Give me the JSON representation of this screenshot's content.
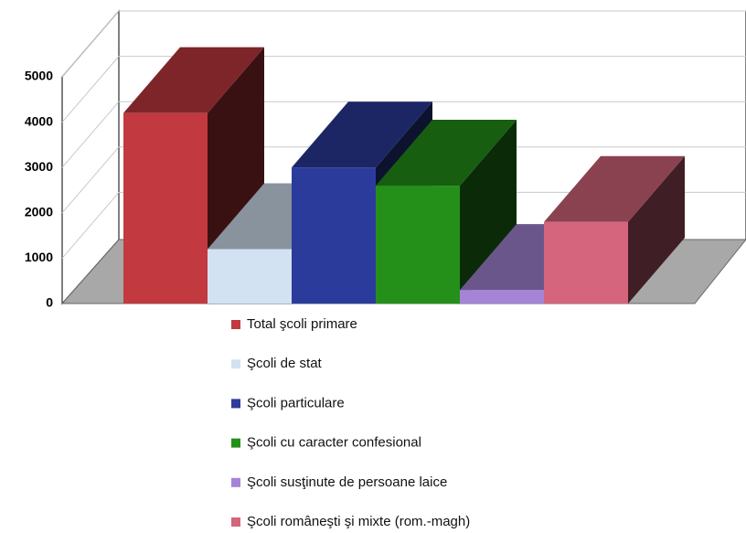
{
  "chart_data": {
    "type": "bar3d",
    "series": [
      {
        "name": "Total şcoli primare",
        "color": "#c2393f",
        "values": [
          4200
        ]
      },
      {
        "name": "Şcoli de stat",
        "color": "#d3e2f2",
        "values": [
          1200
        ]
      },
      {
        "name": "Şcoli particulare",
        "color": "#2b3b9c",
        "values": [
          3000
        ]
      },
      {
        "name": "Şcoli cu caracter confesional",
        "color": "#24901a",
        "values": [
          2600
        ]
      },
      {
        "name": "Şcoli susţinute de persoane laice",
        "color": "#a584d6",
        "values": [
          300
        ]
      },
      {
        "name": "Şcoli româneşti şi mixte (rom.-magh)",
        "color": "#d4657d",
        "values": [
          1800
        ]
      }
    ],
    "ylim": [
      0,
      5000
    ],
    "yticks": [
      0,
      1000,
      2000,
      3000,
      4000,
      5000
    ],
    "grid": true,
    "legend": "bottom"
  }
}
